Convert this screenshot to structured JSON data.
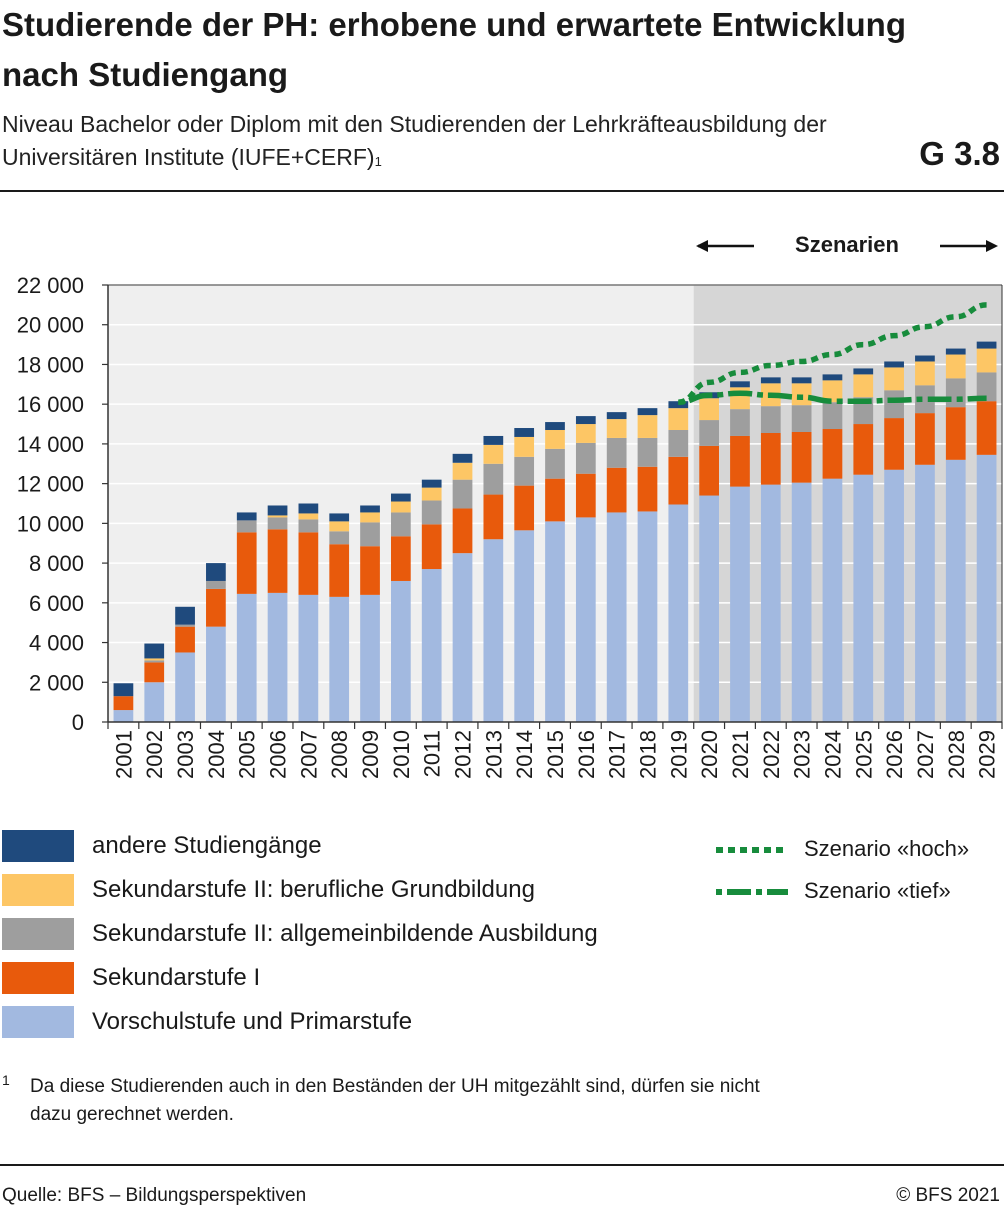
{
  "header": {
    "title": "Studierende der PH: erhobene und erwartete Entwicklung nach Studiengang",
    "subtitle": "Niveau Bachelor oder Diplom mit den Studierenden der Lehrkräfteausbildung der Universitären Institute (IUFE+CERF)",
    "subtitle_footnote_ref": "1",
    "graphic_number": "G 3.8"
  },
  "scenario_header": {
    "label": "Szenarien"
  },
  "chart_data": {
    "type": "bar",
    "stacked": true,
    "categories": [
      "2001",
      "2002",
      "2003",
      "2004",
      "2005",
      "2006",
      "2007",
      "2008",
      "2009",
      "2010",
      "2011",
      "2012",
      "2013",
      "2014",
      "2015",
      "2016",
      "2017",
      "2018",
      "2019",
      "2020",
      "2021",
      "2022",
      "2023",
      "2024",
      "2025",
      "2026",
      "2027",
      "2028",
      "2029"
    ],
    "ylim": [
      0,
      22000
    ],
    "yticks": [
      0,
      2000,
      4000,
      6000,
      8000,
      10000,
      12000,
      14000,
      16000,
      18000,
      20000,
      22000
    ],
    "ytick_labels": [
      "0",
      "2 000",
      "4 000",
      "6 000",
      "8 000",
      "10 000",
      "12 000",
      "14 000",
      "16 000",
      "18 000",
      "20 000",
      "22 000"
    ],
    "scenario_start_category": "2020",
    "series": [
      {
        "name": "Vorschulstufe und Primarstufe",
        "color": "#a2b9e0",
        "values": [
          600,
          2000,
          3500,
          4800,
          6450,
          6500,
          6400,
          6300,
          6400,
          7100,
          7700,
          8500,
          9200,
          9650,
          10100,
          10300,
          10550,
          10600,
          10950,
          11400,
          11850,
          11950,
          12050,
          12250,
          12450,
          12700,
          12950,
          13200,
          13450
        ]
      },
      {
        "name": "Sekundarstufe I",
        "color": "#e85a0c",
        "values": [
          700,
          1000,
          1300,
          1900,
          3100,
          3200,
          3150,
          2650,
          2450,
          2250,
          2250,
          2250,
          2250,
          2250,
          2150,
          2200,
          2250,
          2250,
          2400,
          2500,
          2550,
          2600,
          2550,
          2500,
          2550,
          2600,
          2600,
          2650,
          2700
        ]
      },
      {
        "name": "Sekundarstufe II: allgemeinbildende Ausbildung",
        "color": "#9e9e9e",
        "values": [
          0,
          100,
          100,
          400,
          600,
          600,
          650,
          650,
          1200,
          1200,
          1200,
          1450,
          1550,
          1450,
          1500,
          1550,
          1500,
          1450,
          1350,
          1300,
          1350,
          1350,
          1350,
          1350,
          1350,
          1400,
          1400,
          1450,
          1450
        ]
      },
      {
        "name": "Sekundarstufe II: berufliche Grundbildung",
        "color": "#fdc665",
        "values": [
          0,
          100,
          0,
          0,
          0,
          100,
          300,
          500,
          500,
          550,
          650,
          850,
          950,
          1000,
          950,
          950,
          950,
          1150,
          1100,
          1100,
          1100,
          1150,
          1100,
          1100,
          1150,
          1150,
          1200,
          1200,
          1200
        ]
      },
      {
        "name": "andere Studiengänge",
        "color": "#1f4a7d",
        "values": [
          650,
          750,
          900,
          900,
          400,
          500,
          500,
          400,
          350,
          400,
          400,
          450,
          450,
          450,
          400,
          400,
          350,
          350,
          350,
          300,
          300,
          300,
          300,
          300,
          300,
          300,
          300,
          300,
          350
        ]
      }
    ],
    "lines": [
      {
        "name": "Szenario «hoch»",
        "color": "#178c3c",
        "style": "dotted",
        "x": [
          "2019",
          "2020",
          "2021",
          "2022",
          "2023",
          "2024",
          "2025",
          "2026",
          "2027",
          "2028",
          "2029"
        ],
        "values": [
          16100,
          17100,
          17600,
          17950,
          18150,
          18500,
          19000,
          19450,
          19900,
          20400,
          21000
        ]
      },
      {
        "name": "Szenario «tief»",
        "color": "#178c3c",
        "style": "dash-dot",
        "x": [
          "2019",
          "2020",
          "2021",
          "2022",
          "2023",
          "2024",
          "2025",
          "2026",
          "2027",
          "2028",
          "2029"
        ],
        "values": [
          16100,
          16450,
          16550,
          16450,
          16350,
          16150,
          16150,
          16200,
          16250,
          16250,
          16300
        ]
      }
    ]
  },
  "legend": {
    "bars": [
      "andere Studiengänge",
      "Sekundarstufe II: berufliche Grundbildung",
      "Sekundarstufe II: allgemeinbildende Ausbildung",
      "Sekundarstufe I",
      "Vorschulstufe und Primarstufe"
    ],
    "bar_colors": [
      "#1f4a7d",
      "#fdc665",
      "#9e9e9e",
      "#e85a0c",
      "#a2b9e0"
    ],
    "lines": [
      "Szenario «hoch»",
      "Szenario «tief»"
    ]
  },
  "footnote": {
    "mark": "1",
    "text": "Da diese Studierenden auch in den Beständen der UH mitgezählt sind, dürfen sie nicht dazu gerechnet werden."
  },
  "footer": {
    "source": "Quelle: BFS – Bildungsperspektiven",
    "copyright": "© BFS 2021"
  },
  "colors": {
    "plot_background": "#efefef",
    "scenario_background": "#d6d6d6",
    "gridline": "#ffffff",
    "scenario_line": "#178c3c"
  }
}
